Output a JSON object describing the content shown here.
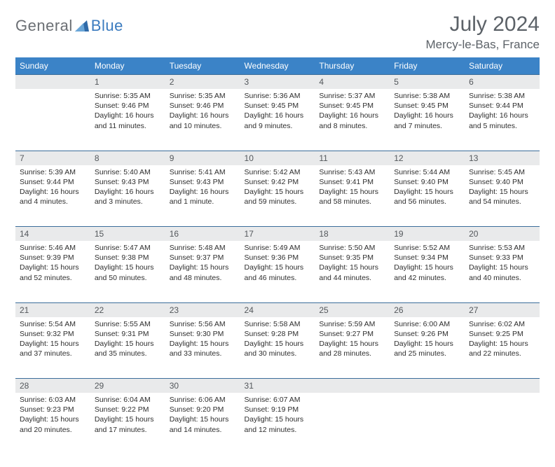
{
  "logo": {
    "general": "General",
    "blue": "Blue"
  },
  "header": {
    "month_title": "July 2024",
    "location": "Mercy-le-Bas, France"
  },
  "colors": {
    "header_bg": "#3b83c7",
    "daynum_bg": "#e9eaeb",
    "row_border": "#3b6d9a",
    "text_gray": "#5c6268",
    "logo_gray": "#6b6f74",
    "logo_blue": "#3b7bbf"
  },
  "weekdays": [
    "Sunday",
    "Monday",
    "Tuesday",
    "Wednesday",
    "Thursday",
    "Friday",
    "Saturday"
  ],
  "layout": {
    "first_weekday_index": 1,
    "days_in_month": 31
  },
  "days": {
    "1": {
      "sunrise": "5:35 AM",
      "sunset": "9:46 PM",
      "daylight": "16 hours and 11 minutes."
    },
    "2": {
      "sunrise": "5:35 AM",
      "sunset": "9:46 PM",
      "daylight": "16 hours and 10 minutes."
    },
    "3": {
      "sunrise": "5:36 AM",
      "sunset": "9:45 PM",
      "daylight": "16 hours and 9 minutes."
    },
    "4": {
      "sunrise": "5:37 AM",
      "sunset": "9:45 PM",
      "daylight": "16 hours and 8 minutes."
    },
    "5": {
      "sunrise": "5:38 AM",
      "sunset": "9:45 PM",
      "daylight": "16 hours and 7 minutes."
    },
    "6": {
      "sunrise": "5:38 AM",
      "sunset": "9:44 PM",
      "daylight": "16 hours and 5 minutes."
    },
    "7": {
      "sunrise": "5:39 AM",
      "sunset": "9:44 PM",
      "daylight": "16 hours and 4 minutes."
    },
    "8": {
      "sunrise": "5:40 AM",
      "sunset": "9:43 PM",
      "daylight": "16 hours and 3 minutes."
    },
    "9": {
      "sunrise": "5:41 AM",
      "sunset": "9:43 PM",
      "daylight": "16 hours and 1 minute."
    },
    "10": {
      "sunrise": "5:42 AM",
      "sunset": "9:42 PM",
      "daylight": "15 hours and 59 minutes."
    },
    "11": {
      "sunrise": "5:43 AM",
      "sunset": "9:41 PM",
      "daylight": "15 hours and 58 minutes."
    },
    "12": {
      "sunrise": "5:44 AM",
      "sunset": "9:40 PM",
      "daylight": "15 hours and 56 minutes."
    },
    "13": {
      "sunrise": "5:45 AM",
      "sunset": "9:40 PM",
      "daylight": "15 hours and 54 minutes."
    },
    "14": {
      "sunrise": "5:46 AM",
      "sunset": "9:39 PM",
      "daylight": "15 hours and 52 minutes."
    },
    "15": {
      "sunrise": "5:47 AM",
      "sunset": "9:38 PM",
      "daylight": "15 hours and 50 minutes."
    },
    "16": {
      "sunrise": "5:48 AM",
      "sunset": "9:37 PM",
      "daylight": "15 hours and 48 minutes."
    },
    "17": {
      "sunrise": "5:49 AM",
      "sunset": "9:36 PM",
      "daylight": "15 hours and 46 minutes."
    },
    "18": {
      "sunrise": "5:50 AM",
      "sunset": "9:35 PM",
      "daylight": "15 hours and 44 minutes."
    },
    "19": {
      "sunrise": "5:52 AM",
      "sunset": "9:34 PM",
      "daylight": "15 hours and 42 minutes."
    },
    "20": {
      "sunrise": "5:53 AM",
      "sunset": "9:33 PM",
      "daylight": "15 hours and 40 minutes."
    },
    "21": {
      "sunrise": "5:54 AM",
      "sunset": "9:32 PM",
      "daylight": "15 hours and 37 minutes."
    },
    "22": {
      "sunrise": "5:55 AM",
      "sunset": "9:31 PM",
      "daylight": "15 hours and 35 minutes."
    },
    "23": {
      "sunrise": "5:56 AM",
      "sunset": "9:30 PM",
      "daylight": "15 hours and 33 minutes."
    },
    "24": {
      "sunrise": "5:58 AM",
      "sunset": "9:28 PM",
      "daylight": "15 hours and 30 minutes."
    },
    "25": {
      "sunrise": "5:59 AM",
      "sunset": "9:27 PM",
      "daylight": "15 hours and 28 minutes."
    },
    "26": {
      "sunrise": "6:00 AM",
      "sunset": "9:26 PM",
      "daylight": "15 hours and 25 minutes."
    },
    "27": {
      "sunrise": "6:02 AM",
      "sunset": "9:25 PM",
      "daylight": "15 hours and 22 minutes."
    },
    "28": {
      "sunrise": "6:03 AM",
      "sunset": "9:23 PM",
      "daylight": "15 hours and 20 minutes."
    },
    "29": {
      "sunrise": "6:04 AM",
      "sunset": "9:22 PM",
      "daylight": "15 hours and 17 minutes."
    },
    "30": {
      "sunrise": "6:06 AM",
      "sunset": "9:20 PM",
      "daylight": "15 hours and 14 minutes."
    },
    "31": {
      "sunrise": "6:07 AM",
      "sunset": "9:19 PM",
      "daylight": "15 hours and 12 minutes."
    }
  },
  "labels": {
    "sunrise": "Sunrise:",
    "sunset": "Sunset:",
    "daylight": "Daylight:"
  }
}
